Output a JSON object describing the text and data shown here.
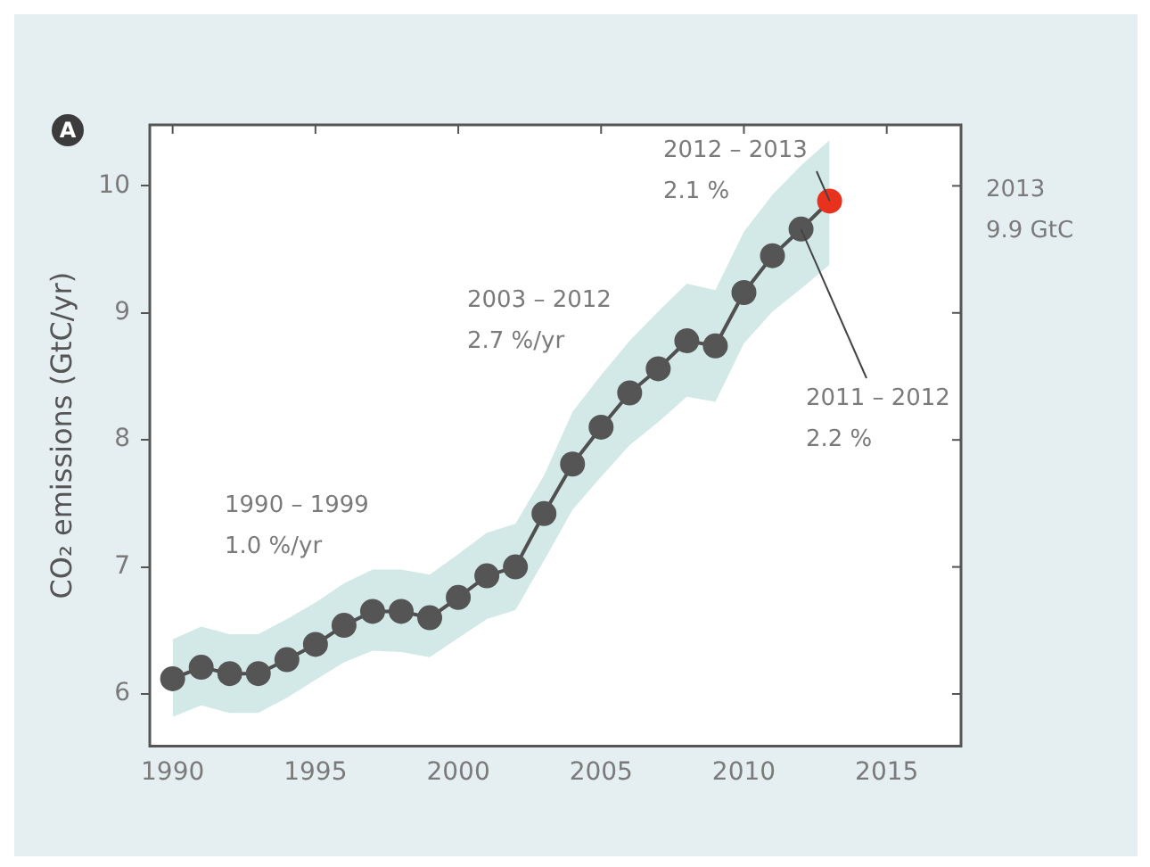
{
  "chart_data": {
    "type": "line",
    "ylabel": "CO₂ emissions (GtC/yr)",
    "x": [
      1990,
      1991,
      1992,
      1993,
      1994,
      1995,
      1996,
      1997,
      1998,
      1999,
      2000,
      2001,
      2002,
      2003,
      2004,
      2005,
      2006,
      2007,
      2008,
      2009,
      2010,
      2011,
      2012,
      2013
    ],
    "series": [
      {
        "color": "#505050",
        "colors": [
          "#555555",
          "#555555",
          "#555555",
          "#555555",
          "#555555",
          "#555555",
          "#555555",
          "#555555",
          "#555555",
          "#555555",
          "#555555",
          "#555555",
          "#555555",
          "#555555",
          "#555555",
          "#555555",
          "#555555",
          "#555555",
          "#555555",
          "#555555",
          "#555555",
          "#555555",
          "#555555",
          "#e8321e"
        ],
        "values": [
          6.12,
          6.21,
          6.16,
          6.16,
          6.27,
          6.39,
          6.54,
          6.65,
          6.65,
          6.6,
          6.76,
          6.93,
          7.0,
          7.42,
          7.81,
          8.1,
          8.37,
          8.56,
          8.78,
          8.74,
          9.16,
          9.45,
          9.66,
          9.88
        ],
        "lower": [
          5.82,
          5.91,
          5.85,
          5.85,
          5.97,
          6.11,
          6.25,
          6.34,
          6.33,
          6.29,
          6.44,
          6.59,
          6.66,
          7.05,
          7.45,
          7.71,
          7.96,
          8.14,
          8.34,
          8.3,
          8.76,
          9.01,
          9.19,
          9.38
        ],
        "upper": [
          6.43,
          6.53,
          6.47,
          6.47,
          6.59,
          6.72,
          6.87,
          6.98,
          6.98,
          6.94,
          7.1,
          7.27,
          7.34,
          7.72,
          8.22,
          8.51,
          8.78,
          9.01,
          9.23,
          9.18,
          9.64,
          9.93,
          10.16,
          10.36
        ]
      }
    ],
    "xlim": [
      1989.2,
      2017.6
    ],
    "xticks": [
      1990,
      1995,
      2000,
      2005,
      2010,
      2015
    ],
    "ylim": [
      5.59,
      10.48
    ],
    "yticks": [
      6,
      7,
      8,
      9,
      10
    ],
    "marker": "circle",
    "line_style": "solid",
    "grid": false,
    "legend": false,
    "annotations": [
      "A",
      "1990 – 1999\n1.0 %/yr",
      "2003 – 2012\n2.7 %/yr",
      {
        "text": "2012 – 2013\n2.1 %",
        "x": 2013,
        "y": 9.88
      },
      {
        "text": "2011 – 2012\n2.2 %",
        "x": 2012,
        "y": 9.66
      },
      "2013\n9.9 GtC"
    ]
  }
}
